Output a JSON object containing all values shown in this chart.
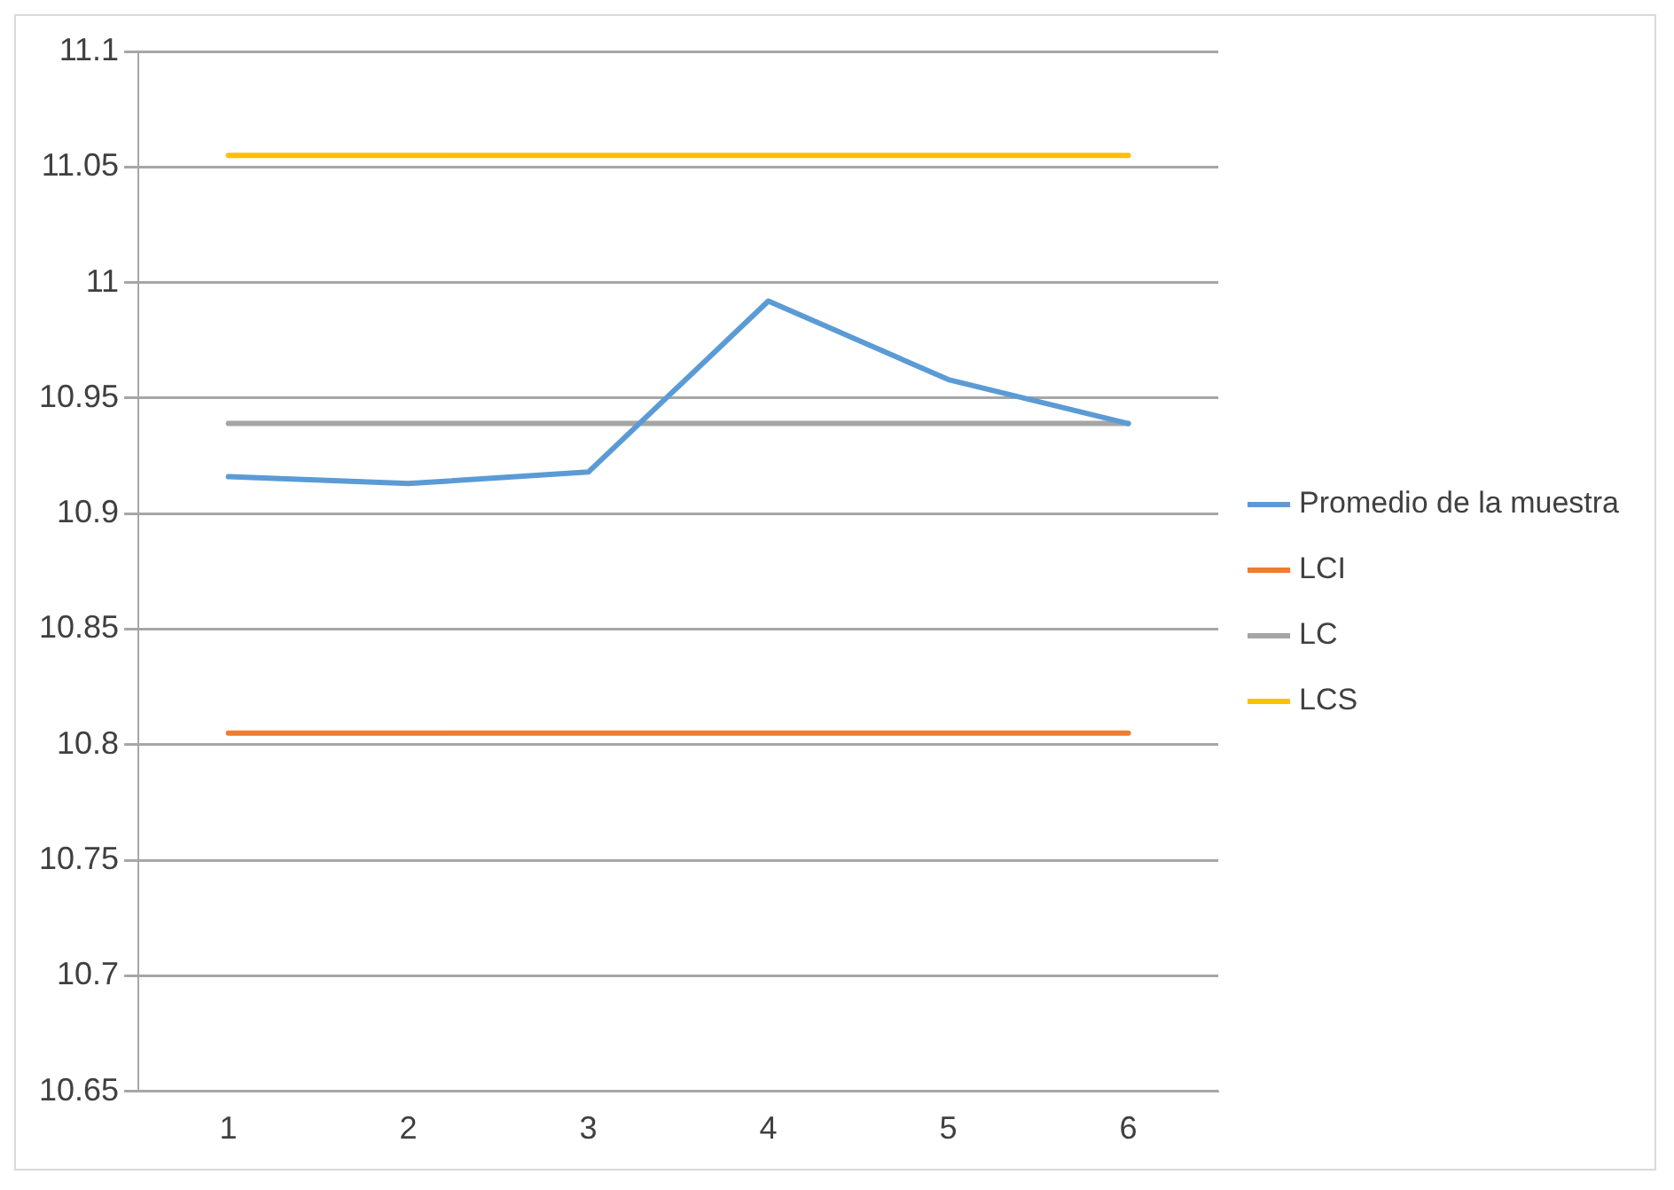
{
  "chart_data": {
    "type": "line",
    "categories": [
      "1",
      "2",
      "3",
      "4",
      "5",
      "6"
    ],
    "series": [
      {
        "name": "Promedio de la muestra",
        "color": "#5b9bd5",
        "values": [
          10.916,
          10.913,
          10.918,
          10.992,
          10.958,
          10.939
        ]
      },
      {
        "name": "LCI",
        "color": "#ed7d31",
        "values": [
          10.805,
          10.805,
          10.805,
          10.805,
          10.805,
          10.805
        ]
      },
      {
        "name": "LC",
        "color": "#a5a5a5",
        "values": [
          10.939,
          10.939,
          10.939,
          10.939,
          10.939,
          10.939
        ]
      },
      {
        "name": "LCS",
        "color": "#ffc000",
        "values": [
          11.055,
          11.055,
          11.055,
          11.055,
          11.055,
          11.055
        ]
      }
    ],
    "ylim": [
      10.65,
      11.1
    ],
    "yticks": [
      10.65,
      10.7,
      10.75,
      10.8,
      10.85,
      10.9,
      10.95,
      11,
      11.05,
      11.1
    ],
    "grid": "y",
    "legend": "right",
    "marker": "none",
    "line_style": "solid"
  }
}
